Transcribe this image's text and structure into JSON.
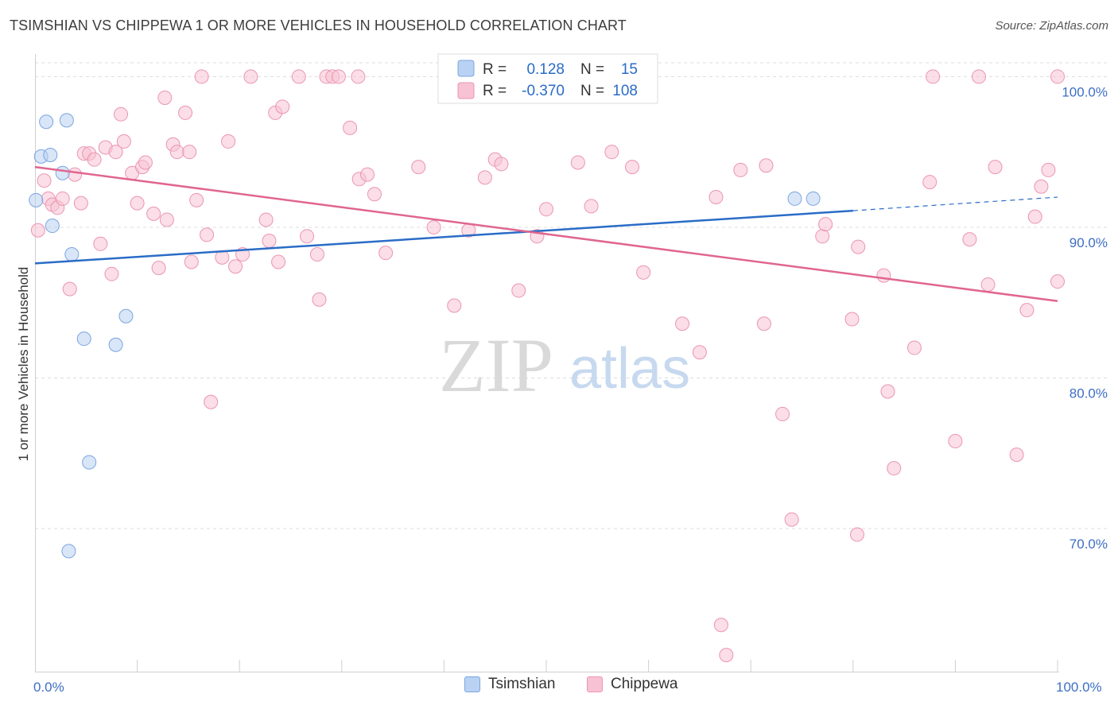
{
  "header": {
    "title": "TSIMSHIAN VS CHIPPEWA 1 OR MORE VEHICLES IN HOUSEHOLD CORRELATION CHART",
    "source": "Source: ZipAtlas.com"
  },
  "watermark": {
    "zip": "ZIP",
    "atlas": "atlas"
  },
  "legend": {
    "rows": [
      {
        "r_label": "R =",
        "r_value": "0.128",
        "n_label": "N =",
        "n_value": "15"
      },
      {
        "r_label": "R =",
        "r_value": "-0.370",
        "n_label": "N =",
        "n_value": "108"
      }
    ]
  },
  "bottom_legend": {
    "series1": "Tsimshian",
    "series2": "Chippewa"
  },
  "colors": {
    "tsimshian_fill": "#b9d2f3",
    "tsimshian_stroke": "#7aa5e0",
    "tsimshian_line": "#2a6cc7",
    "chippewa_fill": "#f7c2d3",
    "chippewa_stroke": "#eb95b2",
    "chippewa_line": "#e0668f",
    "value_text": "#2a6cc7",
    "grid": "#dcdcdc"
  },
  "chart_data": {
    "type": "scatter",
    "title": "TSIMSHIAN VS CHIPPEWA 1 OR MORE VEHICLES IN HOUSEHOLD CORRELATION CHART",
    "xlabel": "",
    "ylabel": "1 or more Vehicles in Household",
    "xlim": [
      0,
      100
    ],
    "ylim": [
      60.5,
      101.5
    ],
    "x_tick_labels": [
      "0.0%",
      "100.0%"
    ],
    "y_ticks": [
      70,
      80,
      90,
      100
    ],
    "y_tick_labels": [
      "70.0%",
      "80.0%",
      "90.0%",
      "100.0%"
    ],
    "series": [
      {
        "name": "Tsimshian",
        "R": 0.128,
        "N": 15,
        "trend": {
          "x0": 0,
          "y0": 87.6,
          "x1": 80,
          "y1": 91.1,
          "dash_to_x": 100,
          "dash_to_y": 92.0
        },
        "points": [
          [
            0.1,
            91.8
          ],
          [
            0.6,
            94.7
          ],
          [
            1.1,
            97.0
          ],
          [
            1.5,
            94.8
          ],
          [
            1.7,
            90.1
          ],
          [
            2.7,
            93.6
          ],
          [
            3.1,
            97.1
          ],
          [
            3.3,
            68.5
          ],
          [
            3.6,
            88.2
          ],
          [
            4.8,
            82.6
          ],
          [
            5.3,
            74.4
          ],
          [
            7.9,
            82.2
          ],
          [
            8.9,
            84.1
          ],
          [
            74.3,
            91.9
          ],
          [
            76.1,
            91.9
          ]
        ]
      },
      {
        "name": "Chippewa",
        "R": -0.37,
        "N": 108,
        "trend": {
          "x0": 0,
          "y0": 94.0,
          "x1": 100,
          "y1": 85.1
        },
        "points": [
          [
            0.3,
            89.8
          ],
          [
            0.9,
            93.1
          ],
          [
            1.3,
            91.9
          ],
          [
            1.7,
            91.5
          ],
          [
            2.2,
            91.3
          ],
          [
            2.7,
            91.9
          ],
          [
            3.4,
            85.9
          ],
          [
            3.9,
            93.5
          ],
          [
            4.5,
            91.6
          ],
          [
            4.8,
            94.9
          ],
          [
            5.3,
            94.9
          ],
          [
            5.8,
            94.5
          ],
          [
            6.4,
            88.9
          ],
          [
            6.9,
            95.3
          ],
          [
            7.5,
            86.9
          ],
          [
            7.9,
            95.0
          ],
          [
            8.4,
            97.5
          ],
          [
            8.7,
            95.7
          ],
          [
            9.5,
            93.6
          ],
          [
            10.0,
            91.6
          ],
          [
            10.5,
            94.0
          ],
          [
            10.8,
            94.3
          ],
          [
            11.6,
            90.9
          ],
          [
            12.1,
            87.3
          ],
          [
            12.7,
            98.6
          ],
          [
            12.9,
            90.5
          ],
          [
            13.5,
            95.5
          ],
          [
            13.9,
            95.0
          ],
          [
            14.7,
            97.6
          ],
          [
            15.1,
            95.0
          ],
          [
            15.3,
            87.7
          ],
          [
            15.8,
            91.8
          ],
          [
            16.3,
            100.0
          ],
          [
            16.8,
            89.5
          ],
          [
            17.2,
            78.4
          ],
          [
            18.3,
            88.0
          ],
          [
            18.9,
            95.7
          ],
          [
            19.6,
            87.4
          ],
          [
            20.3,
            88.2
          ],
          [
            21.1,
            100.0
          ],
          [
            22.6,
            90.5
          ],
          [
            22.9,
            89.1
          ],
          [
            23.5,
            97.6
          ],
          [
            23.8,
            87.7
          ],
          [
            24.2,
            98.0
          ],
          [
            25.8,
            100.0
          ],
          [
            26.6,
            89.4
          ],
          [
            27.6,
            88.2
          ],
          [
            27.8,
            85.2
          ],
          [
            28.5,
            100.0
          ],
          [
            29.1,
            100.0
          ],
          [
            29.7,
            100.0
          ],
          [
            30.8,
            96.6
          ],
          [
            31.6,
            100.0
          ],
          [
            31.7,
            93.2
          ],
          [
            32.5,
            93.5
          ],
          [
            33.2,
            92.2
          ],
          [
            34.3,
            88.3
          ],
          [
            37.5,
            94.0
          ],
          [
            39.0,
            90.0
          ],
          [
            41.0,
            84.8
          ],
          [
            42.4,
            89.8
          ],
          [
            44.0,
            93.3
          ],
          [
            45.0,
            94.5
          ],
          [
            45.6,
            94.2
          ],
          [
            47.3,
            85.8
          ],
          [
            49.1,
            89.4
          ],
          [
            50.0,
            91.2
          ],
          [
            53.1,
            94.3
          ],
          [
            54.4,
            91.4
          ],
          [
            55.0,
            100.0
          ],
          [
            56.4,
            95.0
          ],
          [
            57.1,
            100.0
          ],
          [
            58.4,
            94.0
          ],
          [
            59.5,
            87.0
          ],
          [
            63.3,
            83.6
          ],
          [
            65.0,
            81.7
          ],
          [
            66.6,
            92.0
          ],
          [
            67.1,
            63.6
          ],
          [
            67.6,
            61.6
          ],
          [
            69.0,
            93.8
          ],
          [
            71.3,
            83.6
          ],
          [
            71.5,
            94.1
          ],
          [
            73.1,
            77.6
          ],
          [
            74.0,
            70.6
          ],
          [
            77.0,
            89.4
          ],
          [
            77.3,
            90.2
          ],
          [
            79.9,
            83.9
          ],
          [
            80.4,
            69.6
          ],
          [
            80.5,
            88.7
          ],
          [
            83.0,
            86.8
          ],
          [
            83.4,
            79.1
          ],
          [
            84.0,
            74.0
          ],
          [
            86.0,
            82.0
          ],
          [
            87.5,
            93.0
          ],
          [
            87.8,
            100.0
          ],
          [
            90.0,
            75.8
          ],
          [
            91.4,
            89.2
          ],
          [
            92.3,
            100.0
          ],
          [
            93.2,
            86.2
          ],
          [
            93.9,
            94.0
          ],
          [
            96.0,
            74.9
          ],
          [
            97.0,
            84.5
          ],
          [
            97.8,
            90.7
          ],
          [
            98.4,
            92.7
          ],
          [
            99.1,
            93.8
          ],
          [
            100.0,
            86.4
          ],
          [
            100.0,
            100.0
          ]
        ]
      }
    ]
  }
}
